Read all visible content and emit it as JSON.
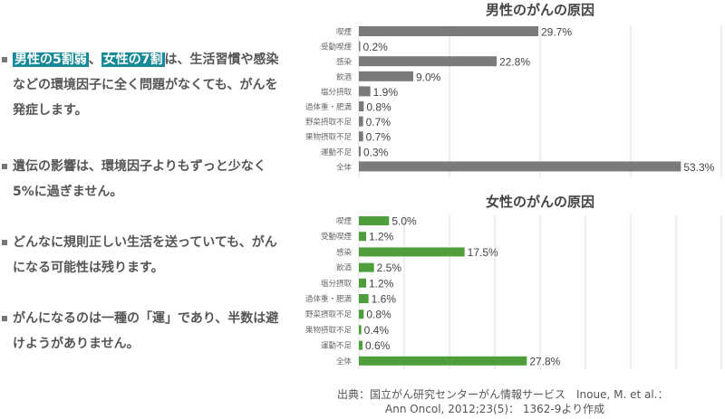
{
  "bullets": [
    {
      "parts": [
        {
          "text": "男性の5割弱",
          "hl": true
        },
        {
          "text": "、",
          "hl": false
        },
        {
          "text": "女性の7割",
          "hl": true
        },
        {
          "text": "は、生活習慣や感染などの環境因子に全く問題がなくても、がんを発症します。",
          "hl": false
        }
      ]
    },
    {
      "parts": [
        {
          "text": "遺伝の影響は、環境因子よりもずっと少なく5%に過ぎません。",
          "hl": false
        }
      ]
    },
    {
      "parts": [
        {
          "text": "どんなに規則正しい生活を送っていても、がんになる可能性は残ります。",
          "hl": false
        }
      ]
    },
    {
      "parts": [
        {
          "text": "がんになるのは一種の「運」であり、半数は避けようがありません。",
          "hl": false
        }
      ]
    }
  ],
  "colors": {
    "male": "#7a7a7a",
    "female": "#4e9e3c",
    "highlight": "#168a96"
  },
  "chart_data": [
    {
      "type": "bar",
      "orientation": "horizontal",
      "title": "男性のがんの原因",
      "categories": [
        "喫煙",
        "受動喫煙",
        "感染",
        "飲酒",
        "塩分摂取",
        "過体重・肥満",
        "野菜摂取不足",
        "果物摂取不足",
        "運動不足",
        "全体"
      ],
      "values": [
        29.7,
        0.2,
        22.8,
        9.0,
        1.9,
        0.8,
        0.7,
        0.7,
        0.3,
        53.3
      ],
      "labels": [
        "29.7%",
        "0.2%",
        "22.8%",
        "9.0%",
        "1.9%",
        "0.8%",
        "0.7%",
        "0.7%",
        "0.3%",
        "53.3%"
      ],
      "xlim": [
        0,
        60
      ],
      "grid_step": 15,
      "grid": true
    },
    {
      "type": "bar",
      "orientation": "horizontal",
      "title": "女性のがんの原因",
      "categories": [
        "喫煙",
        "受動喫煙",
        "感染",
        "飲酒",
        "塩分摂取",
        "過体重・肥満",
        "野菜摂取不足",
        "果物摂取不足",
        "運動不足",
        "全体"
      ],
      "values": [
        5.0,
        1.2,
        17.5,
        2.5,
        1.2,
        1.6,
        0.8,
        0.4,
        0.6,
        27.8
      ],
      "labels": [
        "5.0%",
        "1.2%",
        "17.5%",
        "2.5%",
        "1.2%",
        "1.6%",
        "0.8%",
        "0.4%",
        "0.6%",
        "27.8%"
      ],
      "xlim": [
        0,
        60
      ],
      "grid_step": 7.5,
      "grid": true
    }
  ],
  "source": {
    "line1": "出典：国立がん研究センターがん情報サービス　Inoue, M. et al.：",
    "line2": "Ann Oncol, 2012;23(5)： 1362-9より作成"
  }
}
